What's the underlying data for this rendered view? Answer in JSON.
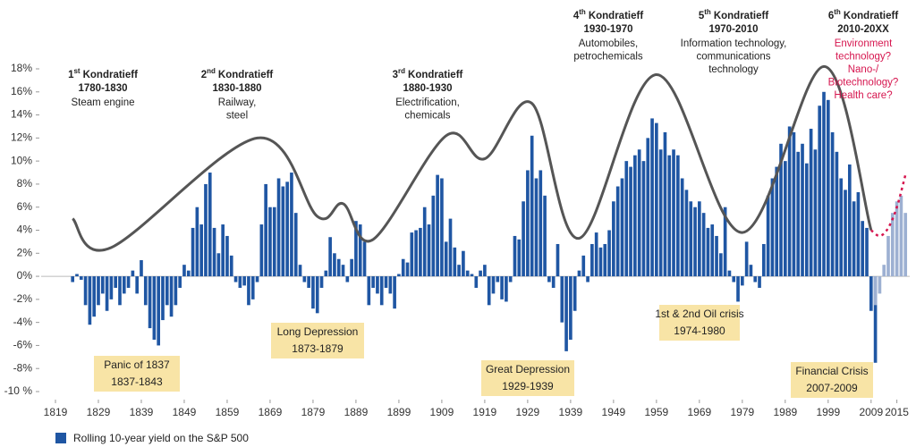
{
  "chart_data": {
    "type": "bar",
    "legend": "Rolling 10-year yield on the S&P 500",
    "xlim": [
      1814,
      2018
    ],
    "xticks": [
      1819,
      1829,
      1839,
      1849,
      1859,
      1869,
      1879,
      1889,
      1899,
      1909,
      1919,
      1929,
      1939,
      1949,
      1959,
      1969,
      1979,
      1989,
      1999,
      2009,
      2015
    ],
    "ylim": [
      -10,
      18
    ],
    "yticks": [
      {
        "value": 18,
        "label": "18%"
      },
      {
        "value": 16,
        "label": "16%"
      },
      {
        "value": 14,
        "label": "14%"
      },
      {
        "value": 12,
        "label": "12%"
      },
      {
        "value": 10,
        "label": "10%"
      },
      {
        "value": 8,
        "label": "8%"
      },
      {
        "value": 6,
        "label": "6%"
      },
      {
        "value": 4,
        "label": "4%"
      },
      {
        "value": 2,
        "label": "2%"
      },
      {
        "value": 0,
        "label": "0%"
      },
      {
        "value": -2,
        "label": "-2%"
      },
      {
        "value": -4,
        "label": "-4%"
      },
      {
        "value": -6,
        "label": "-6%"
      },
      {
        "value": -8,
        "label": "-8%"
      },
      {
        "value": -10,
        "label": "-10 %"
      }
    ],
    "series": [
      {
        "name": "Rolling 10-year yield on the S&P 500",
        "color": "#1f56a3",
        "x_start": 1823,
        "values": [
          -0.5,
          0.2,
          -0.3,
          -2.5,
          -4.2,
          -3.5,
          -2.5,
          -1.5,
          -3,
          -2,
          -1,
          -2.5,
          -1.5,
          -1,
          0.5,
          -1.5,
          1.4,
          -2.5,
          -4.5,
          -5.5,
          -6,
          -3.8,
          -2.5,
          -3.5,
          -2.5,
          -1,
          1,
          0.5,
          4.2,
          6,
          4.5,
          8,
          9,
          4.2,
          2,
          4.5,
          3.5,
          1.8,
          -0.5,
          -1,
          -0.8,
          -2.5,
          -2,
          -0.5,
          4.5,
          8,
          6,
          6,
          8.5,
          7.8,
          8.2,
          9,
          5.5,
          1,
          -0.5,
          -1,
          -2.8,
          -3.2,
          -1,
          0.5,
          3.4,
          2,
          1.5,
          1,
          -0.5,
          1.5,
          4.8,
          4.5,
          3,
          -2.5,
          -1,
          -1.5,
          -2.5,
          -1,
          -1.5,
          -2.8,
          0.2,
          1.5,
          1.2,
          3.8,
          4,
          4.2,
          6,
          4.5,
          7,
          8.8,
          8.5,
          3,
          5,
          2.5,
          1,
          2.2,
          0.5,
          0.2,
          -1,
          0.5,
          1,
          -2.5,
          -1.5,
          -0.5,
          -2,
          -2.2,
          -0.5,
          3.5,
          3.2,
          6.5,
          9.2,
          12.2,
          8.5,
          9.2,
          7,
          -0.5,
          -1,
          2.8,
          -4,
          -6.5,
          -5.5,
          -3,
          0.5,
          1.8,
          -0.5,
          2.8,
          3.8,
          2.5,
          2.8,
          4,
          6.5,
          7.8,
          8.5,
          10,
          9.5,
          10.5,
          11,
          10,
          12,
          13.7,
          13.3,
          11,
          12.5,
          10.5,
          11,
          10.5,
          8.5,
          7.5,
          6.5,
          6,
          6.5,
          5.5,
          4.2,
          4.5,
          3.5,
          2,
          6,
          0.5,
          -0.5,
          -2.2,
          -0.8,
          3,
          1,
          -0.5,
          -1,
          2.8,
          7,
          8.5,
          9.5,
          11.5,
          10,
          13,
          12.5,
          10.8,
          11.5,
          9.8,
          12.8,
          11,
          14.8,
          16,
          15.3,
          12.5,
          10.8,
          8.5,
          7.5,
          9.7,
          6.5,
          7.3,
          4.8,
          4.2,
          -3,
          -7.5
        ]
      },
      {
        "color": "#9db0d2",
        "x_start": 2010,
        "values": [
          -2.5,
          -1.5,
          1,
          3.5,
          5.5,
          6.5,
          7,
          5.5
        ]
      }
    ],
    "curve": {
      "color": "#555555",
      "x": [
        1823,
        1832,
        1866,
        1880,
        1886,
        1893,
        1910,
        1919,
        1930,
        1941,
        1959,
        1979,
        1998,
        2009
      ],
      "values": [
        5,
        2.5,
        12,
        5.2,
        6.3,
        3.2,
        12.2,
        10.2,
        15,
        3.3,
        17.5,
        3.8,
        18.2,
        4
      ]
    },
    "forecast": {
      "color": "#d6164f",
      "x": [
        2009,
        2011,
        2013,
        2015,
        2017
      ],
      "values": [
        4,
        3.5,
        4.2,
        6,
        8.8
      ]
    },
    "waves": [
      {
        "ordinal": "1",
        "suffix": "st",
        "name": "Kondratieff",
        "years": "1780-1830",
        "lines": [
          "Steam engine"
        ]
      },
      {
        "ordinal": "2",
        "suffix": "nd",
        "name": "Kondratieff",
        "years": "1830-1880",
        "lines": [
          "Railway,",
          "steel"
        ]
      },
      {
        "ordinal": "3",
        "suffix": "rd",
        "name": "Kondratieff",
        "years": "1880-1930",
        "lines": [
          "Electrification,",
          "chemicals"
        ]
      },
      {
        "ordinal": "4",
        "suffix": "th",
        "name": "Kondratieff",
        "years": "1930-1970",
        "lines": [
          "Automobiles,",
          "petrochemicals"
        ]
      },
      {
        "ordinal": "5",
        "suffix": "th",
        "name": "Kondratieff",
        "years": "1970-2010",
        "lines": [
          "Information technology,",
          "communications",
          "technology"
        ]
      },
      {
        "ordinal": "6",
        "suffix": "th",
        "name": "Kondratieff",
        "years": "2010-20XX",
        "lines": [
          "Environment",
          "technology?",
          "Nano-/",
          "Biotechnology?",
          "Health care?"
        ]
      }
    ],
    "crises": [
      {
        "name": "Panic of 1837",
        "years": "1837-1843"
      },
      {
        "name": "Long Depression",
        "years": "1873-1879"
      },
      {
        "name": "Great Depression",
        "years": "1929-1939"
      },
      {
        "name": "1st & 2nd Oil crisis",
        "years": "1974-1980"
      },
      {
        "name": "Financial Crisis",
        "years": "2007-2009"
      }
    ]
  }
}
